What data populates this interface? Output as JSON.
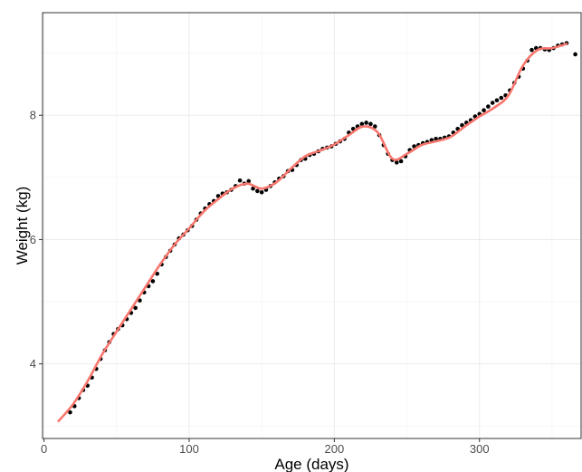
{
  "chart_data": {
    "type": "scatter",
    "xlabel": "Age (days)",
    "ylabel": "Weight (kg)",
    "xlim": [
      -1,
      370
    ],
    "ylim": [
      2.8,
      9.65
    ],
    "x_ticks": [
      0,
      100,
      200,
      300
    ],
    "x_tick_labels": [
      "0",
      "100",
      "200",
      "300"
    ],
    "y_ticks": [
      4,
      6,
      8
    ],
    "y_tick_labels": [
      "4",
      "6",
      "8"
    ],
    "grid": true,
    "legend": "none",
    "colors": {
      "points": "#000000",
      "smooth": "#f8766d",
      "grid": "#ebebeb",
      "panel_border": "#333333",
      "background": "#ffffff"
    },
    "series": [
      {
        "type": "points",
        "x": [
          18,
          21,
          24,
          27,
          30,
          33,
          36,
          39,
          42,
          45,
          48,
          51,
          54,
          57,
          60,
          63,
          66,
          69,
          72,
          75,
          78,
          81,
          84,
          87,
          90,
          93,
          96,
          99,
          102,
          105,
          108,
          111,
          114,
          117,
          120,
          123,
          126,
          129,
          132,
          135,
          138,
          141,
          144,
          147,
          150,
          153,
          156,
          159,
          162,
          165,
          168,
          171,
          174,
          177,
          180,
          183,
          186,
          189,
          192,
          195,
          198,
          201,
          204,
          207,
          210,
          213,
          216,
          219,
          222,
          225,
          228,
          231,
          234,
          237,
          240,
          243,
          246,
          249,
          252,
          255,
          258,
          261,
          264,
          267,
          270,
          273,
          276,
          279,
          282,
          285,
          288,
          291,
          294,
          297,
          300,
          303,
          306,
          309,
          312,
          315,
          318,
          321,
          324,
          327,
          330,
          333,
          336,
          339,
          342,
          345,
          348,
          351,
          354,
          357,
          360,
          366
        ],
        "y": [
          3.22,
          3.32,
          3.45,
          3.58,
          3.65,
          3.78,
          3.92,
          4.08,
          4.22,
          4.35,
          4.48,
          4.56,
          4.62,
          4.72,
          4.82,
          4.9,
          5.02,
          5.15,
          5.25,
          5.33,
          5.45,
          5.6,
          5.72,
          5.82,
          5.92,
          6.02,
          6.08,
          6.15,
          6.22,
          6.32,
          6.42,
          6.5,
          6.57,
          6.62,
          6.7,
          6.74,
          6.76,
          6.8,
          6.86,
          6.95,
          6.9,
          6.94,
          6.82,
          6.78,
          6.76,
          6.8,
          6.86,
          6.92,
          6.98,
          7.02,
          7.1,
          7.12,
          7.2,
          7.28,
          7.3,
          7.36,
          7.38,
          7.42,
          7.46,
          7.48,
          7.5,
          7.54,
          7.58,
          7.62,
          7.72,
          7.78,
          7.82,
          7.86,
          7.88,
          7.86,
          7.82,
          7.68,
          7.52,
          7.38,
          7.28,
          7.24,
          7.26,
          7.34,
          7.44,
          7.5,
          7.52,
          7.55,
          7.57,
          7.6,
          7.62,
          7.62,
          7.64,
          7.66,
          7.72,
          7.78,
          7.84,
          7.88,
          7.92,
          7.98,
          8.02,
          8.08,
          8.14,
          8.2,
          8.24,
          8.28,
          8.32,
          8.4,
          8.52,
          8.62,
          8.75,
          8.88,
          9.05,
          9.08,
          9.08,
          9.06,
          9.05,
          9.08,
          9.12,
          9.14,
          9.16,
          8.98
        ]
      },
      {
        "type": "smooth",
        "x": [
          10,
          20,
          30,
          40,
          50,
          60,
          70,
          80,
          90,
          100,
          110,
          120,
          130,
          140,
          150,
          160,
          170,
          180,
          190,
          200,
          210,
          220,
          230,
          240,
          250,
          260,
          270,
          280,
          290,
          300,
          310,
          320,
          330,
          340,
          350,
          360
        ],
        "y": [
          3.08,
          3.35,
          3.72,
          4.15,
          4.52,
          4.88,
          5.24,
          5.6,
          5.92,
          6.18,
          6.45,
          6.65,
          6.82,
          6.9,
          6.82,
          6.92,
          7.14,
          7.34,
          7.43,
          7.53,
          7.68,
          7.82,
          7.72,
          7.3,
          7.38,
          7.52,
          7.58,
          7.65,
          7.82,
          7.98,
          8.12,
          8.32,
          8.8,
          9.05,
          9.08,
          9.15
        ]
      }
    ]
  }
}
